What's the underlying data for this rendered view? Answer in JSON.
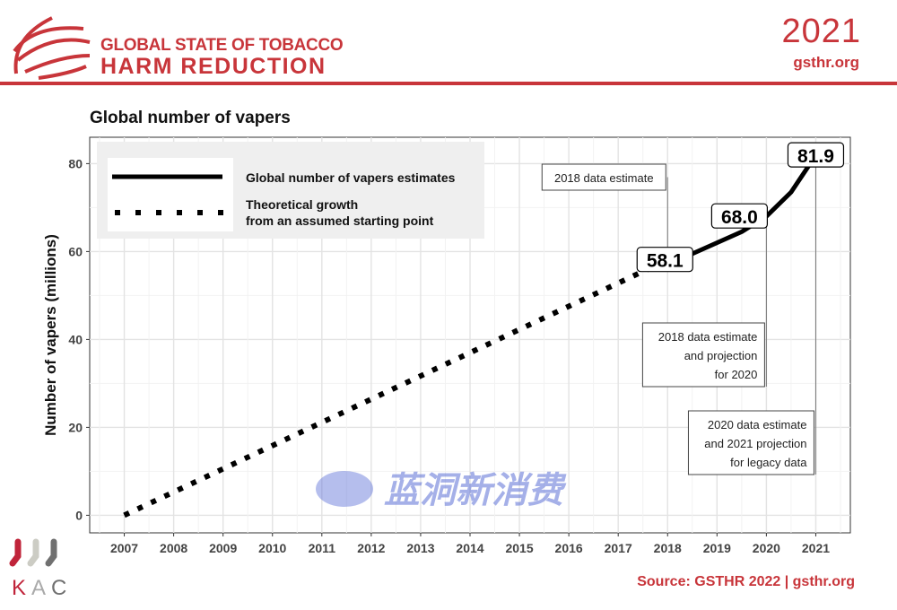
{
  "header": {
    "brand_line1": "GLOBAL STATE OF TOBACCO",
    "brand_line2": "HARM REDUCTION",
    "year": "2021",
    "site": "gsthr.org"
  },
  "footer": {
    "source": "Source: GSTHR 2022 | gsthr.org",
    "logo_text": "K·A·C"
  },
  "watermark": "蓝洞新消费",
  "colors": {
    "brand": "#c8353a",
    "line": "#000000",
    "grid": "#e6e6e6"
  },
  "chart_data": {
    "type": "line",
    "title": "Global number of vapers",
    "xlabel": "",
    "ylabel": "Number of vapers (millions)",
    "xlim": [
      2006.3,
      2021.7
    ],
    "ylim": [
      -4,
      86
    ],
    "x_ticks": [
      "2007",
      "2008",
      "2009",
      "2010",
      "2011",
      "2012",
      "2013",
      "2014",
      "2015",
      "2016",
      "2017",
      "2018",
      "2019",
      "2020",
      "2021"
    ],
    "y_ticks": [
      "0",
      "20",
      "40",
      "60",
      "80"
    ],
    "grid": true,
    "legend_position": "top-left",
    "series": [
      {
        "name": "Global number of vapers estimates",
        "style": "solid",
        "x": [
          2017.6,
          2018,
          2018.5,
          2019,
          2019.5,
          2020,
          2020.5,
          2021
        ],
        "y": [
          57.0,
          58.1,
          59.5,
          62.0,
          64.5,
          68.0,
          73.5,
          81.9
        ]
      },
      {
        "name": "Theoretical growth\nfrom an assumed starting point",
        "style": "dotted",
        "x": [
          2007,
          2017.6
        ],
        "y": [
          0,
          56.0
        ]
      }
    ],
    "legend": [
      "Global number of vapers estimates",
      "Theoretical growth",
      "from an assumed starting point"
    ],
    "data_labels": [
      {
        "x": 2018,
        "y": 58.1,
        "text": "58.1"
      },
      {
        "x": 2020,
        "y": 68.0,
        "text": "68.0"
      },
      {
        "x": 2021,
        "y": 81.9,
        "text": "81.9"
      }
    ],
    "annotations": [
      {
        "x": 2018,
        "lines": [
          "2018 data estimate"
        ]
      },
      {
        "x": 2020,
        "lines": [
          "2018 data estimate",
          "and projection",
          "for 2020"
        ]
      },
      {
        "x": 2021,
        "lines": [
          "2020 data estimate",
          "and 2021 projection",
          "for legacy data"
        ]
      }
    ]
  }
}
